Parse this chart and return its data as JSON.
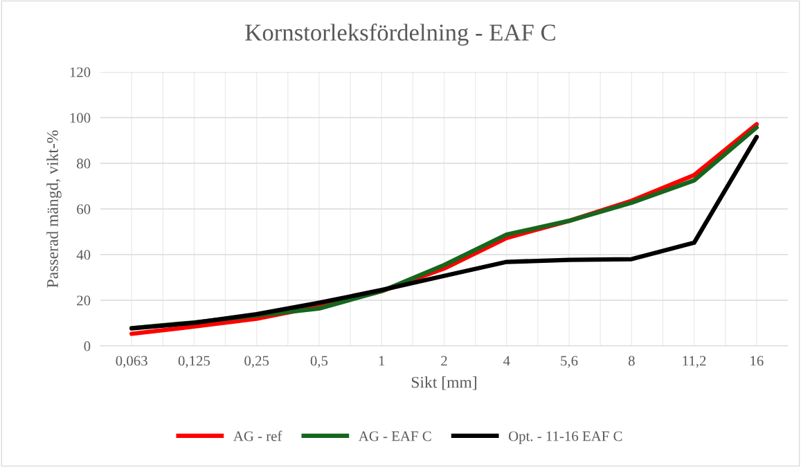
{
  "chart_data": {
    "type": "line",
    "title": "Kornstorleksfördelning - EAF C",
    "xlabel": "Sikt [mm]",
    "ylabel": "Passerad mängd, vikt-%",
    "categories": [
      "0,063",
      "0,125",
      "0,25",
      "0,5",
      "1",
      "2",
      "4",
      "5,6",
      "8",
      "11,2",
      "16"
    ],
    "series": [
      {
        "name": "AG - ref",
        "color": "#ff0000",
        "values": [
          5.3,
          8.5,
          11.9,
          17.4,
          24.0,
          33.9,
          47.3,
          54.8,
          63.6,
          74.8,
          97.1
        ]
      },
      {
        "name": "AG - EAF C",
        "color": "#16661e",
        "values": [
          7.8,
          10.3,
          13.4,
          16.4,
          24.0,
          35.4,
          48.8,
          54.8,
          62.7,
          72.5,
          95.7
        ]
      },
      {
        "name": "Opt. - 11-16 EAF C",
        "color": "#000000",
        "values": [
          7.7,
          10.1,
          13.9,
          18.9,
          24.5,
          30.7,
          36.8,
          37.7,
          38.0,
          45.2,
          91.5
        ]
      }
    ],
    "ylim": [
      0,
      120
    ],
    "yticks": [
      0,
      20,
      40,
      60,
      80,
      100,
      120
    ],
    "grid": true,
    "legend": "bottom",
    "marker": "none",
    "line_style": "solid"
  }
}
